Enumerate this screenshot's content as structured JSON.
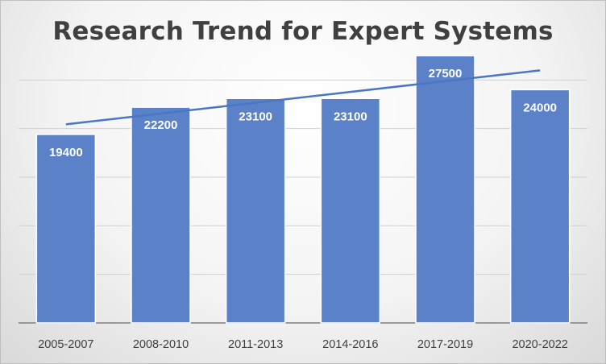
{
  "chart_data": {
    "type": "bar",
    "title": "Research Trend for Expert Systems",
    "categories": [
      "2005-2007",
      "2008-2010",
      "2011-2013",
      "2014-2016",
      "2017-2019",
      "2020-2022"
    ],
    "values": [
      19400,
      22200,
      23100,
      23100,
      27500,
      24000
    ],
    "trendline": "linear",
    "xlabel": "",
    "ylabel": "",
    "ylim": [
      0,
      30000
    ],
    "y_tick_labels_visible": false,
    "grid": true,
    "legend": "none",
    "data_labels": true,
    "colors": {
      "bar": "#5b82c8",
      "bar_border": "#ffffff",
      "trendline": "#4a76c4",
      "label": "#ffffff",
      "axis_text": "#404040"
    }
  }
}
